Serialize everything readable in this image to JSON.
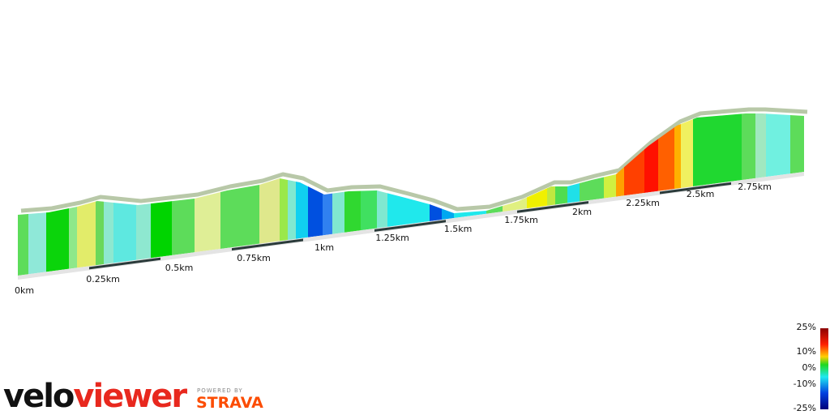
{
  "distance_labels": [
    "0km",
    "0.25km",
    "0.5km",
    "0.75km",
    "1km",
    "1.25km",
    "1.5km",
    "1.75km",
    "2km",
    "2.25km",
    "2.5km",
    "2.75km"
  ],
  "colorbar": {
    "labels": [
      "25%",
      "10%",
      "0%",
      "-10%",
      "-25%"
    ]
  },
  "brand": {
    "logo_a": "velo",
    "logo_b": "viewer",
    "powered_by": "POWERED BY",
    "strava": "STRAVA"
  }
}
